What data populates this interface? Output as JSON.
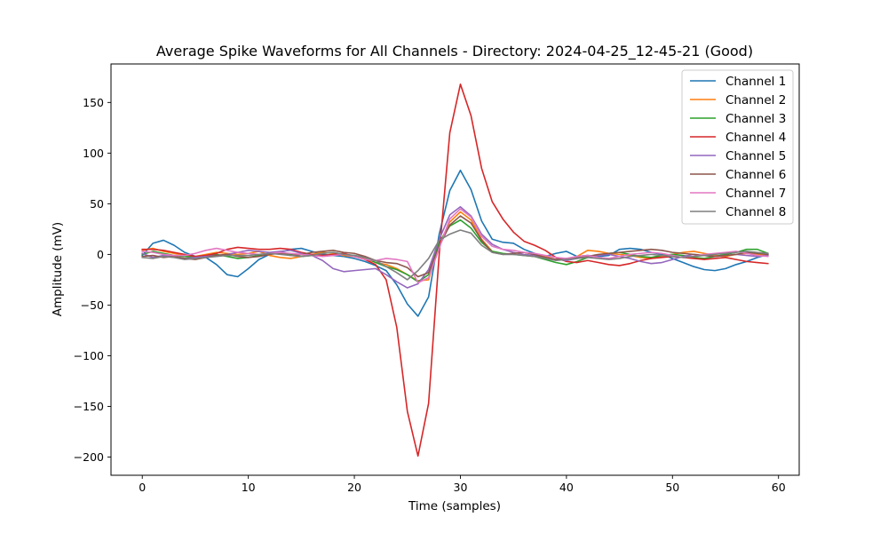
{
  "chart_data": {
    "type": "line",
    "title": "Average Spike Waveforms for All Channels - Directory: 2024-04-25_12-45-21 (Good)",
    "xlabel": "Time (samples)",
    "ylabel": "Amplitude (mV)",
    "xlim": [
      -2.95,
      61.95
    ],
    "ylim": [
      -218,
      188
    ],
    "xticks": [
      0,
      10,
      20,
      30,
      40,
      50,
      60
    ],
    "xtick_labels": [
      "0",
      "10",
      "20",
      "30",
      "40",
      "50",
      "60"
    ],
    "yticks": [
      -200,
      -150,
      -100,
      -50,
      0,
      50,
      100,
      150
    ],
    "ytick_labels": [
      "−200",
      "−150",
      "−100",
      "−50",
      "0",
      "50",
      "100",
      "150"
    ],
    "grid": false,
    "legend_position": "top-right",
    "x": [
      0,
      1,
      2,
      3,
      4,
      5,
      6,
      7,
      8,
      9,
      10,
      11,
      12,
      13,
      14,
      15,
      16,
      17,
      18,
      19,
      20,
      21,
      22,
      23,
      24,
      25,
      26,
      27,
      28,
      29,
      30,
      31,
      32,
      33,
      34,
      35,
      36,
      37,
      38,
      39,
      40,
      41,
      42,
      43,
      44,
      45,
      46,
      47,
      48,
      49,
      50,
      51,
      52,
      53,
      54,
      55,
      56,
      57,
      58,
      59
    ],
    "series": [
      {
        "name": "Channel 1",
        "color": "#1f77b4",
        "values": [
          -1,
          11,
          14,
          9,
          2,
          -2,
          -3,
          -10,
          -20,
          -22,
          -14,
          -5,
          0,
          2,
          5,
          6,
          3,
          0,
          -1,
          -2,
          -4,
          -7,
          -11,
          -16,
          -30,
          -49,
          -61,
          -42,
          20,
          63,
          83,
          64,
          33,
          15,
          12,
          11,
          5,
          1,
          -2,
          1,
          3,
          -2,
          -1,
          -2,
          -1,
          5,
          6,
          5,
          2,
          0,
          -4,
          -8,
          -12,
          -15,
          -16,
          -14,
          -10,
          -7,
          -3,
          0
        ]
      },
      {
        "name": "Channel 2",
        "color": "#ff7f0e",
        "values": [
          4,
          6,
          3,
          1,
          -1,
          -2,
          0,
          2,
          1,
          0,
          1,
          3,
          -1,
          -3,
          -4,
          -2,
          0,
          2,
          1,
          -1,
          -2,
          -4,
          -8,
          -10,
          -14,
          -20,
          -26,
          -25,
          10,
          32,
          42,
          34,
          15,
          3,
          0,
          1,
          2,
          0,
          -2,
          -5,
          -6,
          -2,
          4,
          3,
          1,
          0,
          -1,
          -3,
          -4,
          -2,
          0,
          2,
          3,
          1,
          -1,
          -2,
          0,
          1,
          0,
          -1
        ]
      },
      {
        "name": "Channel 3",
        "color": "#2ca02c",
        "values": [
          0,
          3,
          1,
          -1,
          -2,
          -3,
          -1,
          0,
          -2,
          -4,
          -3,
          -1,
          1,
          2,
          0,
          -2,
          -1,
          1,
          2,
          0,
          -1,
          -3,
          -8,
          -12,
          -15,
          -20,
          -27,
          -20,
          12,
          28,
          34,
          26,
          12,
          3,
          1,
          0,
          -1,
          -2,
          -5,
          -8,
          -10,
          -7,
          -3,
          -1,
          1,
          2,
          0,
          -2,
          -3,
          -1,
          0,
          -1,
          -3,
          -4,
          -2,
          0,
          2,
          5,
          5,
          1
        ]
      },
      {
        "name": "Channel 4",
        "color": "#d62728",
        "values": [
          5,
          5,
          4,
          2,
          0,
          -2,
          -1,
          1,
          5,
          7,
          6,
          5,
          5,
          6,
          5,
          2,
          0,
          -1,
          0,
          1,
          -2,
          -5,
          -10,
          -25,
          -72,
          -155,
          -199,
          -147,
          0,
          120,
          168,
          137,
          85,
          52,
          35,
          22,
          13,
          9,
          4,
          -3,
          -7,
          -8,
          -6,
          -8,
          -10,
          -11,
          -9,
          -6,
          -4,
          -3,
          -2,
          -3,
          -4,
          -5,
          -4,
          -3,
          -5,
          -7,
          -8,
          -9
        ]
      },
      {
        "name": "Channel 5",
        "color": "#9467bd",
        "values": [
          1,
          -3,
          -1,
          -2,
          -4,
          -3,
          -2,
          -1,
          0,
          2,
          4,
          3,
          2,
          3,
          4,
          1,
          -1,
          -6,
          -14,
          -17,
          -16,
          -15,
          -14,
          -20,
          -27,
          -33,
          -29,
          -15,
          15,
          39,
          47,
          38,
          20,
          10,
          5,
          2,
          0,
          -1,
          -3,
          -5,
          -6,
          -4,
          -2,
          -1,
          0,
          -2,
          -4,
          -7,
          -9,
          -8,
          -5,
          -2,
          0,
          -1,
          -2,
          -1,
          0,
          -1,
          -2,
          -1
        ]
      },
      {
        "name": "Channel 6",
        "color": "#8c564b",
        "values": [
          -2,
          -1,
          -3,
          -2,
          -4,
          -5,
          -3,
          -1,
          0,
          -2,
          -3,
          -2,
          0,
          1,
          -1,
          0,
          2,
          3,
          4,
          2,
          1,
          -2,
          -6,
          -8,
          -9,
          -13,
          -22,
          -18,
          8,
          29,
          38,
          31,
          14,
          2,
          0,
          1,
          2,
          0,
          -3,
          -5,
          -4,
          -3,
          -2,
          0,
          1,
          2,
          3,
          4,
          5,
          4,
          2,
          1,
          0,
          -1,
          -2,
          -1,
          0,
          2,
          1,
          0
        ]
      },
      {
        "name": "Channel 7",
        "color": "#e377c2",
        "values": [
          3,
          2,
          0,
          -1,
          -1,
          1,
          4,
          6,
          4,
          2,
          1,
          0,
          1,
          2,
          1,
          0,
          -1,
          -2,
          -1,
          0,
          -2,
          -5,
          -6,
          -4,
          -5,
          -7,
          -28,
          -23,
          6,
          35,
          45,
          37,
          18,
          8,
          5,
          4,
          2,
          1,
          -1,
          -3,
          -4,
          -2,
          -1,
          -3,
          -4,
          -2,
          0,
          1,
          2,
          1,
          -1,
          -3,
          -2,
          0,
          1,
          2,
          3,
          1,
          -1,
          -2
        ]
      },
      {
        "name": "Channel 8",
        "color": "#7f7f7f",
        "values": [
          -3,
          -4,
          -2,
          -3,
          -5,
          -4,
          -3,
          -2,
          -1,
          -1,
          -1,
          0,
          1,
          0,
          -1,
          -2,
          -1,
          1,
          2,
          0,
          -1,
          -3,
          -6,
          -12,
          -18,
          -25,
          -16,
          -4,
          14,
          20,
          24,
          21,
          9,
          2,
          0,
          0,
          -1,
          -2,
          -4,
          -6,
          -5,
          -4,
          -3,
          -4,
          -5,
          -4,
          -2,
          -1,
          0,
          -1,
          -2,
          -3,
          -2,
          -1,
          0,
          1,
          2,
          3,
          2,
          1
        ]
      }
    ]
  }
}
